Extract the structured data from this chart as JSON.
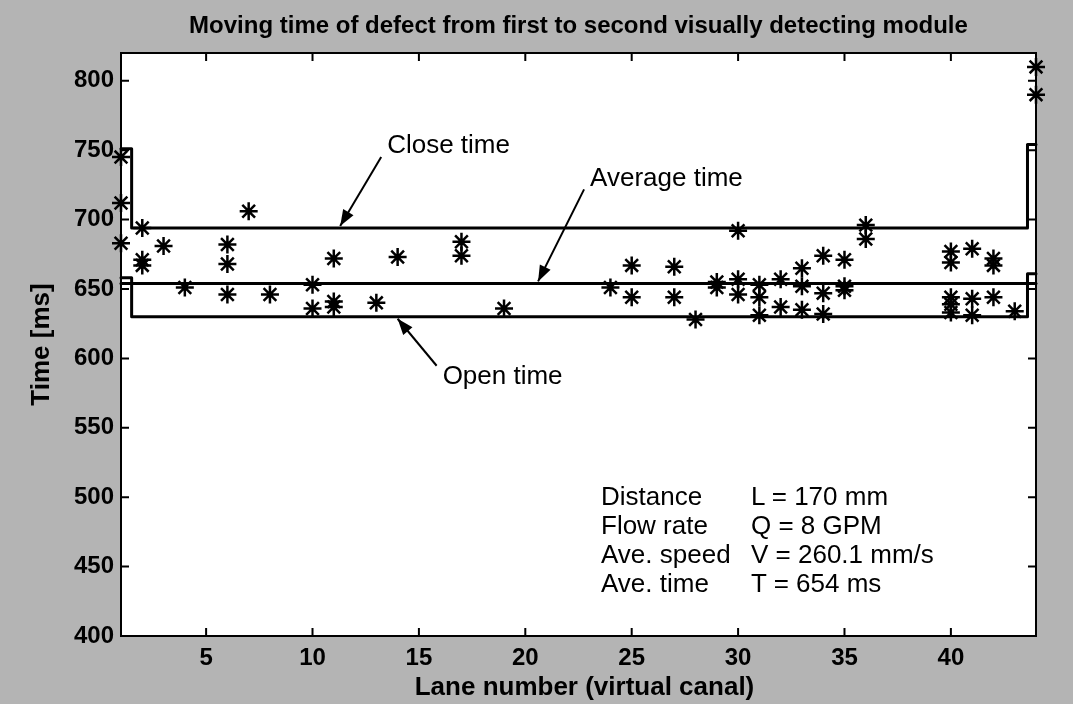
{
  "chart_data": {
    "type": "scatter",
    "title": "Moving time of defect from first to second visually detecting module",
    "xlabel": "Lane number (virtual canal)",
    "ylabel": "Time [ms]",
    "xlim": [
      1,
      44
    ],
    "xticks": [
      5,
      10,
      15,
      20,
      25,
      30,
      35,
      40
    ],
    "ylim": [
      400,
      820
    ],
    "yticks": [
      400,
      450,
      500,
      550,
      600,
      650,
      700,
      750,
      800
    ],
    "series": [
      {
        "color": "#000000",
        "marker": "cross",
        "x": [
          1,
          1,
          1,
          2,
          2,
          2,
          3,
          4,
          6,
          6,
          6,
          7,
          8,
          10,
          10,
          11,
          11,
          11,
          13,
          14,
          17,
          17,
          19,
          24,
          25,
          25,
          27,
          27,
          28,
          29,
          29,
          30,
          30,
          30,
          31,
          31,
          31,
          32,
          32,
          33,
          33,
          33,
          34,
          34,
          34,
          35,
          35,
          35,
          36,
          36,
          40,
          40,
          40,
          40,
          40,
          41,
          41,
          41,
          42,
          42,
          42,
          43,
          44,
          44
        ],
        "values": [
          745,
          712,
          683,
          694,
          671,
          667,
          681,
          651,
          682,
          668,
          646,
          706,
          646,
          653,
          636,
          672,
          641,
          637,
          640,
          673,
          684,
          674,
          636,
          651,
          667,
          644,
          666,
          644,
          628,
          655,
          651,
          692,
          657,
          646,
          653,
          644,
          631,
          657,
          637,
          665,
          652,
          635,
          674,
          647,
          632,
          671,
          652,
          649,
          696,
          686,
          677,
          669,
          644,
          639,
          633,
          679,
          643,
          631,
          672,
          667,
          644,
          634,
          810,
          790
        ]
      },
      {
        "type": "line",
        "color": "#000000",
        "x": [
          1,
          1.5,
          1.5,
          43.6,
          43.6,
          44
        ],
        "values": [
          751,
          751,
          694,
          694,
          754,
          754
        ]
      },
      {
        "type": "line",
        "color": "#000000",
        "x": [
          1,
          44
        ],
        "values": [
          654,
          654
        ]
      },
      {
        "type": "line",
        "color": "#000000",
        "x": [
          1,
          1.5,
          1.5,
          43.6,
          43.6,
          44
        ],
        "values": [
          658,
          658,
          630,
          630,
          661,
          661
        ]
      }
    ],
    "annotations": [
      {
        "text": "Close time",
        "x": 11.3,
        "y": 694
      },
      {
        "text": "Average time",
        "x": 20.6,
        "y": 654
      },
      {
        "text": "Open time",
        "x": 14,
        "y": 630
      },
      "Distance",
      "L = 170 mm",
      "Flow rate",
      "Q = 8 GPM",
      "Ave. speed",
      "V = 260.1 mm/s",
      "Ave. time",
      "T = 654 ms"
    ]
  }
}
